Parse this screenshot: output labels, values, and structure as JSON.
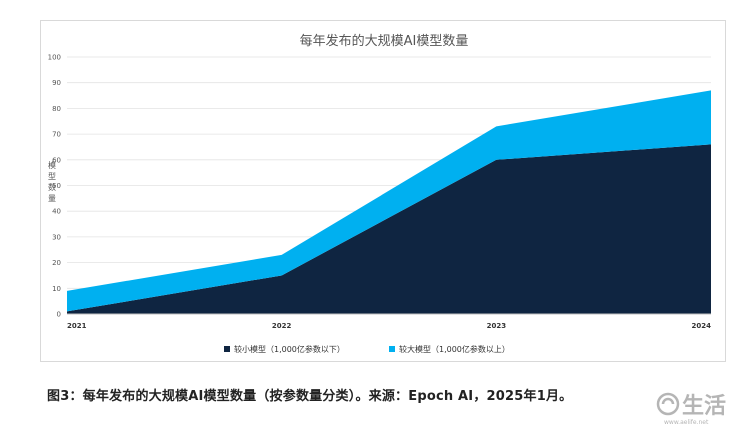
{
  "chart_data": {
    "type": "area",
    "stacked": true,
    "title": "每年发布的大规模AI模型数量",
    "ylabel": "模型数量",
    "xlabel": "",
    "x": [
      "2021",
      "2022",
      "2023",
      "2024"
    ],
    "ylim": [
      0,
      100
    ],
    "yticks": [
      0,
      10,
      20,
      30,
      40,
      50,
      60,
      70,
      80,
      90,
      100
    ],
    "grid": true,
    "legend_position": "bottom",
    "series": [
      {
        "name": "较小模型（1,000亿参数以下）",
        "values": [
          1,
          15,
          60,
          66
        ],
        "color": "#0f2541"
      },
      {
        "name": "较大模型（1,000亿参数以上）",
        "values": [
          8,
          8,
          13,
          21
        ],
        "color": "#00b0f0"
      }
    ]
  },
  "caption": "图3：每年发布的大规模AI模型数量（按参数量分类）。来源：Epoch AI，2025年1月。",
  "watermark": {
    "text": "生活",
    "subtext": "www.aelife.net",
    "color": "#b5b5b5"
  }
}
